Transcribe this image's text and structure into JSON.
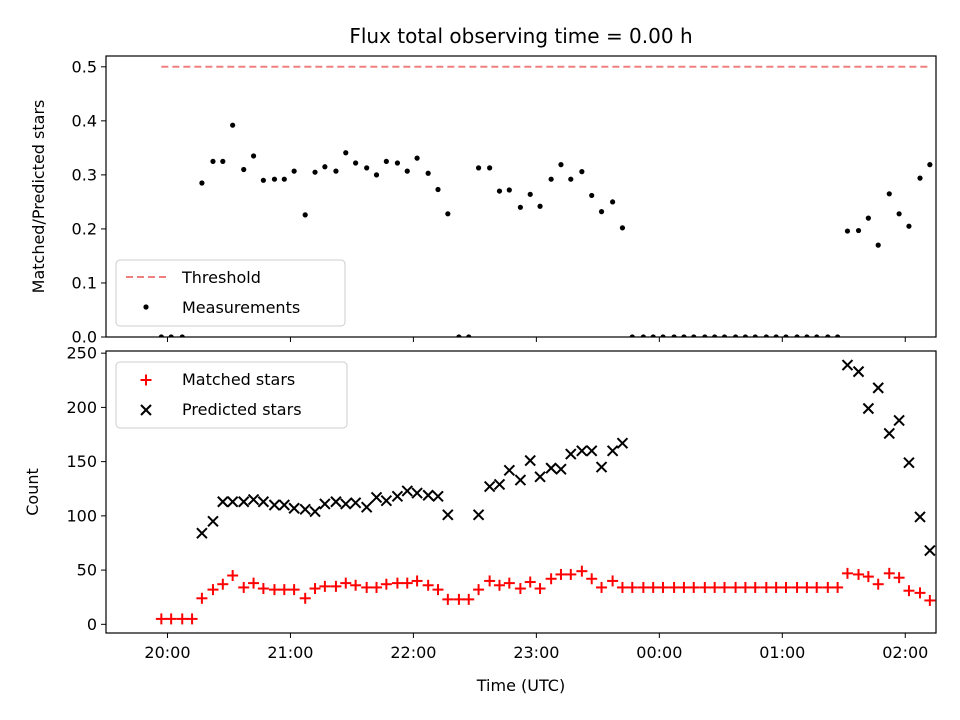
{
  "figure": {
    "title": "Flux total observing time = 0.00 h"
  },
  "chart_data": [
    {
      "type": "scatter",
      "ylabel": "Matched/Predicted stars",
      "ylim": [
        0,
        0.52
      ],
      "yticks": [
        "0.0",
        "0.1",
        "0.2",
        "0.3",
        "0.4",
        "0.5"
      ],
      "xlim_hours": [
        19.5,
        26.25
      ],
      "legend": {
        "placement": "lower-left",
        "entries": [
          "Threshold",
          "Measurements"
        ]
      },
      "threshold": {
        "name": "Threshold",
        "value": 0.5,
        "x_from": 19.95,
        "x_to": 26.2,
        "color": "#f08080"
      },
      "series": [
        {
          "name": "Measurements",
          "color": "#000000",
          "points": [
            [
              19.95,
              0
            ],
            [
              20.03,
              0
            ],
            [
              20.12,
              0
            ],
            [
              20.28,
              0.285
            ],
            [
              20.37,
              0.325
            ],
            [
              20.45,
              0.325
            ],
            [
              20.53,
              0.392
            ],
            [
              20.62,
              0.31
            ],
            [
              20.7,
              0.335
            ],
            [
              20.78,
              0.29
            ],
            [
              20.87,
              0.292
            ],
            [
              20.95,
              0.292
            ],
            [
              21.03,
              0.307
            ],
            [
              21.12,
              0.226
            ],
            [
              21.2,
              0.305
            ],
            [
              21.28,
              0.315
            ],
            [
              21.37,
              0.307
            ],
            [
              21.45,
              0.341
            ],
            [
              21.53,
              0.322
            ],
            [
              21.62,
              0.313
            ],
            [
              21.7,
              0.3
            ],
            [
              21.78,
              0.325
            ],
            [
              21.87,
              0.322
            ],
            [
              21.95,
              0.307
            ],
            [
              22.03,
              0.331
            ],
            [
              22.12,
              0.303
            ],
            [
              22.2,
              0.273
            ],
            [
              22.28,
              0.228
            ],
            [
              22.37,
              0
            ],
            [
              22.45,
              0
            ],
            [
              22.53,
              0.313
            ],
            [
              22.62,
              0.313
            ],
            [
              22.7,
              0.27
            ],
            [
              22.78,
              0.272
            ],
            [
              22.87,
              0.24
            ],
            [
              22.95,
              0.264
            ],
            [
              23.03,
              0.242
            ],
            [
              23.12,
              0.292
            ],
            [
              23.2,
              0.319
            ],
            [
              23.28,
              0.292
            ],
            [
              23.37,
              0.306
            ],
            [
              23.45,
              0.262
            ],
            [
              23.53,
              0.232
            ],
            [
              23.62,
              0.25
            ],
            [
              23.7,
              0.202
            ],
            [
              23.78,
              0
            ],
            [
              23.87,
              0
            ],
            [
              23.95,
              0
            ],
            [
              24.03,
              0
            ],
            [
              24.12,
              0
            ],
            [
              24.2,
              0
            ],
            [
              24.28,
              0
            ],
            [
              24.37,
              0
            ],
            [
              24.45,
              0
            ],
            [
              24.53,
              0
            ],
            [
              24.62,
              0
            ],
            [
              24.7,
              0
            ],
            [
              24.78,
              0
            ],
            [
              24.87,
              0
            ],
            [
              24.95,
              0
            ],
            [
              25.03,
              0
            ],
            [
              25.12,
              0
            ],
            [
              25.2,
              0
            ],
            [
              25.28,
              0
            ],
            [
              25.37,
              0
            ],
            [
              25.45,
              0
            ],
            [
              25.53,
              0.196
            ],
            [
              25.62,
              0.197
            ],
            [
              25.7,
              0.22
            ],
            [
              25.78,
              0.17
            ],
            [
              25.87,
              0.265
            ],
            [
              25.95,
              0.228
            ],
            [
              26.03,
              0.205
            ],
            [
              26.12,
              0.294
            ],
            [
              26.2,
              0.319
            ]
          ]
        }
      ]
    },
    {
      "type": "scatter",
      "xlabel": "Time (UTC)",
      "ylabel": "Count",
      "ylim": [
        -8,
        252
      ],
      "yticks": [
        "0",
        "50",
        "100",
        "150",
        "200",
        "250"
      ],
      "xlim_hours": [
        19.5,
        26.25
      ],
      "xticks": [
        {
          "hour": 20,
          "label": "20:00"
        },
        {
          "hour": 21,
          "label": "21:00"
        },
        {
          "hour": 22,
          "label": "22:00"
        },
        {
          "hour": 23,
          "label": "23:00"
        },
        {
          "hour": 24,
          "label": "00:00"
        },
        {
          "hour": 25,
          "label": "01:00"
        },
        {
          "hour": 26,
          "label": "02:00"
        }
      ],
      "legend": {
        "placement": "upper-left",
        "entries": [
          "Matched stars",
          "Predicted stars"
        ]
      },
      "series": [
        {
          "name": "Matched stars",
          "marker": "plus",
          "color": "#ff0000",
          "points": [
            [
              19.95,
              5
            ],
            [
              20.03,
              5
            ],
            [
              20.12,
              5
            ],
            [
              20.2,
              5
            ],
            [
              20.28,
              24
            ],
            [
              20.37,
              32
            ],
            [
              20.45,
              37
            ],
            [
              20.53,
              45
            ],
            [
              20.62,
              34
            ],
            [
              20.7,
              38
            ],
            [
              20.78,
              33
            ],
            [
              20.87,
              32
            ],
            [
              20.95,
              32
            ],
            [
              21.03,
              32
            ],
            [
              21.12,
              24
            ],
            [
              21.2,
              33
            ],
            [
              21.28,
              35
            ],
            [
              21.37,
              35
            ],
            [
              21.45,
              38
            ],
            [
              21.53,
              36
            ],
            [
              21.62,
              34
            ],
            [
              21.7,
              34
            ],
            [
              21.78,
              37
            ],
            [
              21.87,
              38
            ],
            [
              21.95,
              38
            ],
            [
              22.03,
              40
            ],
            [
              22.12,
              36
            ],
            [
              22.2,
              32
            ],
            [
              22.28,
              23
            ],
            [
              22.37,
              23
            ],
            [
              22.45,
              23
            ],
            [
              22.53,
              32
            ],
            [
              22.62,
              40
            ],
            [
              22.7,
              36
            ],
            [
              22.78,
              38
            ],
            [
              22.87,
              33
            ],
            [
              22.95,
              39
            ],
            [
              23.03,
              33
            ],
            [
              23.12,
              42
            ],
            [
              23.2,
              46
            ],
            [
              23.28,
              46
            ],
            [
              23.37,
              49
            ],
            [
              23.45,
              42
            ],
            [
              23.53,
              34
            ],
            [
              23.62,
              40
            ],
            [
              23.7,
              34
            ],
            [
              23.78,
              34
            ],
            [
              23.87,
              34
            ],
            [
              23.95,
              34
            ],
            [
              24.03,
              34
            ],
            [
              24.12,
              34
            ],
            [
              24.2,
              34
            ],
            [
              24.28,
              34
            ],
            [
              24.37,
              34
            ],
            [
              24.45,
              34
            ],
            [
              24.53,
              34
            ],
            [
              24.62,
              34
            ],
            [
              24.7,
              34
            ],
            [
              24.78,
              34
            ],
            [
              24.87,
              34
            ],
            [
              24.95,
              34
            ],
            [
              25.03,
              34
            ],
            [
              25.12,
              34
            ],
            [
              25.2,
              34
            ],
            [
              25.28,
              34
            ],
            [
              25.37,
              34
            ],
            [
              25.45,
              34
            ],
            [
              25.53,
              47
            ],
            [
              25.62,
              46
            ],
            [
              25.7,
              44
            ],
            [
              25.78,
              37
            ],
            [
              25.87,
              47
            ],
            [
              25.95,
              43
            ],
            [
              26.03,
              31
            ],
            [
              26.12,
              29
            ],
            [
              26.2,
              22
            ]
          ]
        },
        {
          "name": "Predicted stars",
          "marker": "x",
          "color": "#000000",
          "points": [
            [
              20.28,
              84
            ],
            [
              20.37,
              95
            ],
            [
              20.45,
              113
            ],
            [
              20.53,
              113
            ],
            [
              20.62,
              113
            ],
            [
              20.7,
              115
            ],
            [
              20.78,
              113
            ],
            [
              20.87,
              110
            ],
            [
              20.95,
              110
            ],
            [
              21.03,
              107
            ],
            [
              21.12,
              106
            ],
            [
              21.2,
              104
            ],
            [
              21.28,
              111
            ],
            [
              21.37,
              113
            ],
            [
              21.45,
              111
            ],
            [
              21.53,
              112
            ],
            [
              21.62,
              108
            ],
            [
              21.7,
              117
            ],
            [
              21.78,
              114
            ],
            [
              21.87,
              118
            ],
            [
              21.95,
              123
            ],
            [
              22.03,
              121
            ],
            [
              22.12,
              119
            ],
            [
              22.2,
              118
            ],
            [
              22.28,
              101
            ],
            [
              22.53,
              101
            ],
            [
              22.62,
              127
            ],
            [
              22.7,
              129
            ],
            [
              22.78,
              142
            ],
            [
              22.87,
              133
            ],
            [
              22.95,
              151
            ],
            [
              23.03,
              136
            ],
            [
              23.12,
              144
            ],
            [
              23.2,
              143
            ],
            [
              23.28,
              157
            ],
            [
              23.37,
              160
            ],
            [
              23.45,
              160
            ],
            [
              23.53,
              145
            ],
            [
              23.62,
              160
            ],
            [
              23.7,
              167
            ],
            [
              25.53,
              239
            ],
            [
              25.62,
              233
            ],
            [
              25.7,
              199
            ],
            [
              25.78,
              218
            ],
            [
              25.87,
              176
            ],
            [
              25.95,
              188
            ],
            [
              26.03,
              149
            ],
            [
              26.12,
              99
            ],
            [
              26.2,
              68
            ]
          ]
        }
      ]
    }
  ]
}
